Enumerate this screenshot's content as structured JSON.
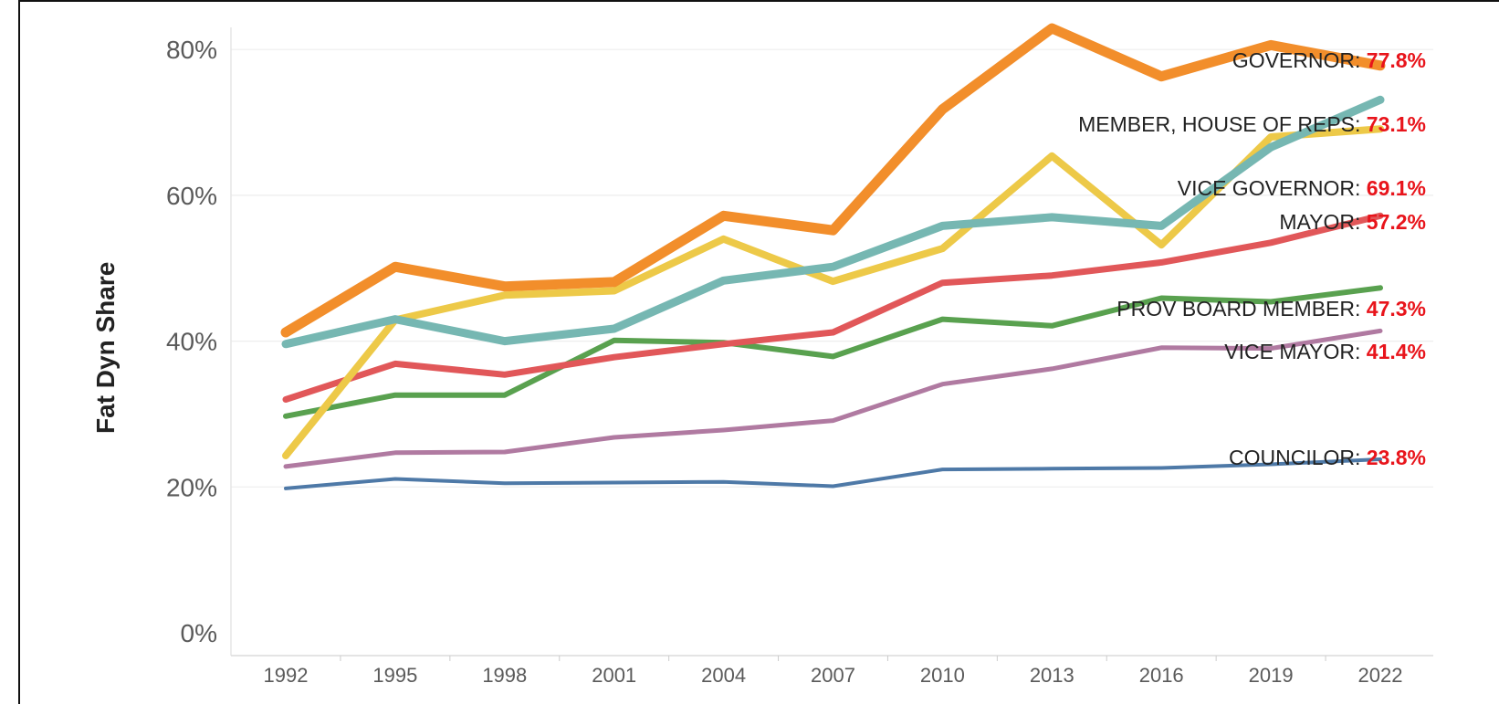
{
  "chart_data": {
    "type": "line",
    "ylabel": "Fat Dyn Share",
    "xlabel": "",
    "x": [
      "1992",
      "1995",
      "1998",
      "2001",
      "2004",
      "2007",
      "2010",
      "2013",
      "2016",
      "2019",
      "2022"
    ],
    "yticks": [
      "0%",
      "20%",
      "40%",
      "60%",
      "80%"
    ],
    "ylim": [
      0,
      87
    ],
    "grid": "horizontal",
    "series": [
      {
        "name": "COUNCILOR",
        "end_label": "23.8%",
        "color": "#4e79a7",
        "width": 4,
        "values": [
          19.8,
          21.1,
          20.5,
          20.6,
          20.7,
          20.1,
          22.4,
          22.5,
          22.6,
          23.1,
          23.8
        ]
      },
      {
        "name": "VICE MAYOR",
        "end_label": "41.4%",
        "color": "#b07aa1",
        "width": 5,
        "values": [
          22.8,
          24.7,
          24.8,
          26.8,
          27.8,
          29.1,
          34.1,
          36.2,
          39.1,
          39.0,
          41.4
        ]
      },
      {
        "name": "PROV BOARD MEMBER",
        "end_label": "47.3%",
        "color": "#59a14f",
        "width": 6,
        "values": [
          29.7,
          32.6,
          32.6,
          40.1,
          39.8,
          37.9,
          43.0,
          42.1,
          45.9,
          45.4,
          47.3
        ]
      },
      {
        "name": "MAYOR",
        "end_label": "57.2%",
        "color": "#e15759",
        "width": 7,
        "values": [
          32.0,
          36.9,
          35.4,
          37.8,
          39.6,
          41.2,
          48.0,
          49.0,
          50.8,
          53.5,
          57.2
        ]
      },
      {
        "name": "VICE GOVERNOR",
        "end_label": "69.1%",
        "color": "#edc948",
        "width": 8,
        "values": [
          24.3,
          42.9,
          46.3,
          46.9,
          54.0,
          48.2,
          52.7,
          65.4,
          53.2,
          68.0,
          69.1
        ]
      },
      {
        "name": "MEMBER, HOUSE OF REPS",
        "end_label": "73.1%",
        "color": "#76b7b2",
        "width": 9,
        "values": [
          39.6,
          43.0,
          40.0,
          41.7,
          48.3,
          50.2,
          55.8,
          57.0,
          55.8,
          66.6,
          73.1
        ]
      },
      {
        "name": "GOVERNOR",
        "end_label": "77.8%",
        "color": "#f28e2b",
        "width": 11,
        "values": [
          41.2,
          50.2,
          47.5,
          48.1,
          57.2,
          55.2,
          71.8,
          82.9,
          76.3,
          80.6,
          77.8
        ]
      }
    ]
  }
}
